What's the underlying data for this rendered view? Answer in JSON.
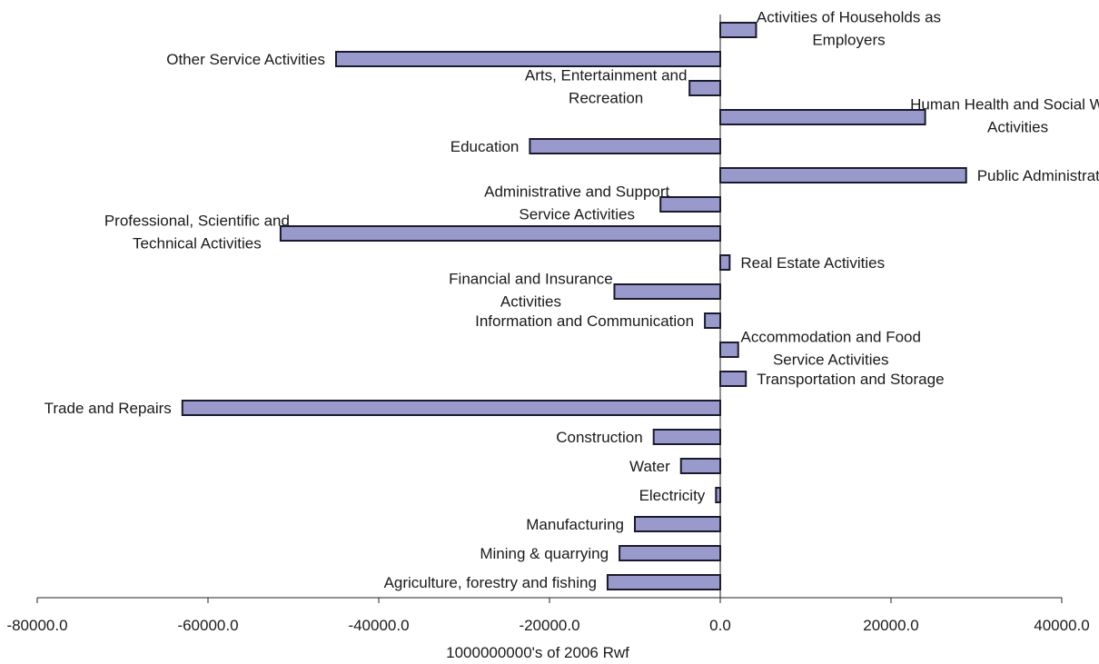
{
  "chart_data": {
    "type": "bar",
    "orientation": "horizontal",
    "xlabel": "1000000000's of 2006 Rwf",
    "ylabel": "",
    "title": "",
    "xlim": [
      -80000,
      40000
    ],
    "xticks": [
      -80000,
      -60000,
      -40000,
      -20000,
      0,
      20000,
      40000
    ],
    "xtick_labels": [
      "-80000.0",
      "-60000.0",
      "-40000.0",
      "-20000.0",
      "0.0",
      "20000.0",
      "40000.0"
    ],
    "grid": false,
    "legend": "none",
    "bar_color": "#9999cc",
    "bar_edge_color": "#1a1a2e",
    "categories": [
      "Activities of Households as Employers",
      "Other Service Activities",
      "Arts, Entertainment and Recreation",
      "Human Health and Social Work Activities",
      "Education",
      "Public Administration",
      "Administrative and Support Service Activities",
      "Professional, Scientific and Technical Activities",
      "Real Estate Activities",
      "Financial and Insurance Activities",
      "Information and Communication",
      "Accommodation and Food Service Activities",
      "Transportation and Storage",
      "Trade and Repairs",
      "Construction",
      "Water",
      "Electricity",
      "Manufacturing",
      "Mining & quarrying",
      "Agriculture, forestry and fishing"
    ],
    "label_lines": [
      [
        "Activities of Households as",
        "Employers"
      ],
      [
        "Other Service Activities"
      ],
      [
        "Arts, Entertainment and",
        "Recreation"
      ],
      [
        "Human Health and Social Work",
        "Activities"
      ],
      [
        "Education"
      ],
      [
        "Public Administration"
      ],
      [
        "Administrative and Support",
        "Service Activities"
      ],
      [
        "Professional, Scientific and",
        "Technical Activities"
      ],
      [
        "Real Estate Activities"
      ],
      [
        "Financial and Insurance",
        "Activities"
      ],
      [
        "Information and Communication"
      ],
      [
        "Accommodation and Food",
        "Service Activities"
      ],
      [
        "Transportation and Storage"
      ],
      [
        "Trade and Repairs"
      ],
      [
        "Construction"
      ],
      [
        "Water"
      ],
      [
        "Electricity"
      ],
      [
        "Manufacturing"
      ],
      [
        "Mining & quarrying"
      ],
      [
        "Agriculture, forestry and fishing"
      ]
    ],
    "values": [
      4200,
      -45000,
      -3600,
      24000,
      -22300,
      28800,
      -7000,
      -51500,
      1100,
      -12400,
      -1800,
      2100,
      3000,
      -63000,
      -7800,
      -4600,
      -500,
      -10000,
      -11800,
      -13200
    ]
  }
}
